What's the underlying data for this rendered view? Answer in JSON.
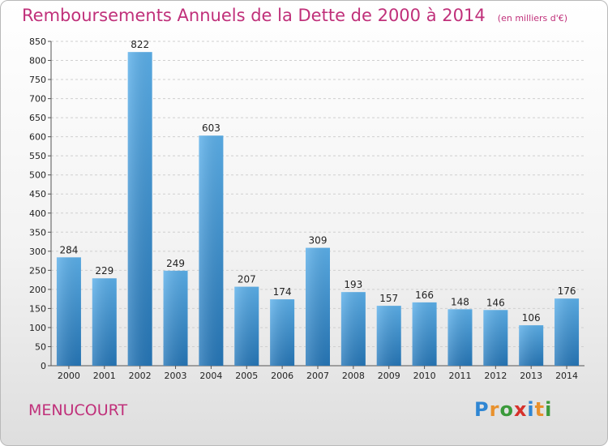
{
  "title": "Remboursements Annuels de la Dette de 2000 à 2014",
  "unit_note": "(en milliers d'€)",
  "commune": "MENUCOURT",
  "logo": {
    "letters": [
      "P",
      "r",
      "o",
      "x",
      "i",
      "t",
      "i"
    ],
    "colors": [
      "#2f86d3",
      "#e8912d",
      "#3b9a3b",
      "#d6312b",
      "#2f86d3",
      "#e8912d",
      "#3b9a3b"
    ]
  },
  "colors": {
    "bar": "#3d95d8",
    "bar_light": "#5cb0ea",
    "bar_dark": "#2677b8",
    "title": "#c0307a"
  },
  "chart_data": {
    "type": "bar",
    "categories": [
      "2000",
      "2001",
      "2002",
      "2003",
      "2004",
      "2005",
      "2006",
      "2007",
      "2008",
      "2009",
      "2010",
      "2011",
      "2012",
      "2013",
      "2014"
    ],
    "values": [
      284,
      229,
      822,
      249,
      603,
      207,
      174,
      309,
      193,
      157,
      166,
      148,
      146,
      106,
      176
    ],
    "title": "Remboursements Annuels de la Dette de 2000 à 2014",
    "ylim": [
      0,
      850
    ],
    "yticks": [
      0,
      50,
      100,
      150,
      200,
      250,
      300,
      350,
      400,
      450,
      500,
      550,
      600,
      650,
      700,
      750,
      800,
      850
    ],
    "grid": true,
    "legend": "none"
  }
}
